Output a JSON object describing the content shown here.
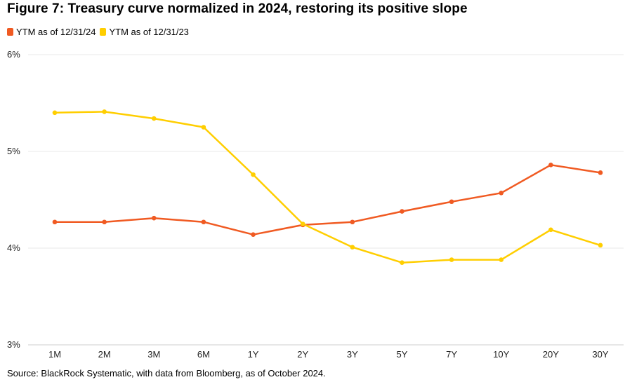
{
  "chart_data": {
    "type": "line",
    "title": "Figure 7: Treasury curve normalized in 2024, restoring its positive slope",
    "categories": [
      "1M",
      "2M",
      "3M",
      "6M",
      "1Y",
      "2Y",
      "3Y",
      "5Y",
      "7Y",
      "10Y",
      "20Y",
      "30Y"
    ],
    "series": [
      {
        "name": "YTM as of 12/31/24",
        "color": "#F05A22",
        "values": [
          4.27,
          4.27,
          4.31,
          4.27,
          4.14,
          4.24,
          4.27,
          4.38,
          4.48,
          4.57,
          4.86,
          4.78
        ]
      },
      {
        "name": "YTM as of 12/31/23",
        "color": "#FFCE00",
        "values": [
          5.4,
          5.41,
          5.34,
          5.25,
          4.76,
          4.25,
          4.01,
          3.85,
          3.88,
          3.88,
          4.19,
          4.03
        ]
      }
    ],
    "y_ticks": [
      "3%",
      "4%",
      "5%",
      "6%"
    ],
    "ylim": [
      3,
      6
    ],
    "grid": true,
    "legend": "top-left",
    "source": "Source: BlackRock Systematic, with data from Bloomberg, as of October 2024."
  }
}
